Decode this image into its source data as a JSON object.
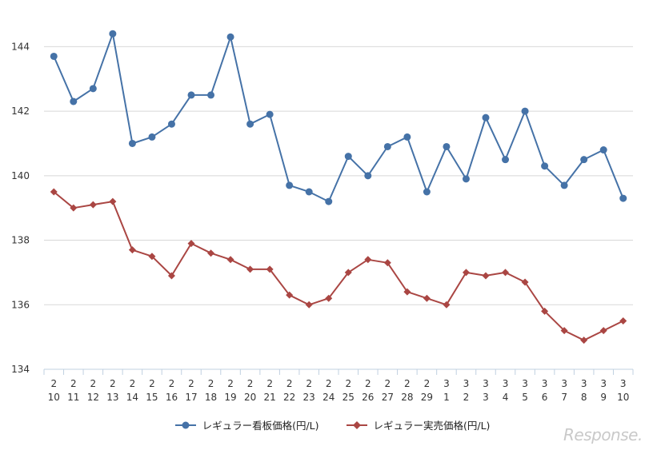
{
  "chart_data": {
    "type": "line",
    "title": "",
    "xlabel": "",
    "ylabel": "",
    "ylim": [
      134,
      145
    ],
    "yticks": [
      134,
      136,
      138,
      140,
      142,
      144
    ],
    "grid": true,
    "legend_position": "bottom",
    "categories": [
      {
        "month": "2",
        "day": "10"
      },
      {
        "month": "2",
        "day": "11"
      },
      {
        "month": "2",
        "day": "12"
      },
      {
        "month": "2",
        "day": "13"
      },
      {
        "month": "2",
        "day": "14"
      },
      {
        "month": "2",
        "day": "15"
      },
      {
        "month": "2",
        "day": "16"
      },
      {
        "month": "2",
        "day": "17"
      },
      {
        "month": "2",
        "day": "18"
      },
      {
        "month": "2",
        "day": "19"
      },
      {
        "month": "2",
        "day": "20"
      },
      {
        "month": "2",
        "day": "21"
      },
      {
        "month": "2",
        "day": "22"
      },
      {
        "month": "2",
        "day": "23"
      },
      {
        "month": "2",
        "day": "24"
      },
      {
        "month": "2",
        "day": "25"
      },
      {
        "month": "2",
        "day": "26"
      },
      {
        "month": "2",
        "day": "27"
      },
      {
        "month": "2",
        "day": "28"
      },
      {
        "month": "2",
        "day": "29"
      },
      {
        "month": "3",
        "day": "1"
      },
      {
        "month": "3",
        "day": "2"
      },
      {
        "month": "3",
        "day": "3"
      },
      {
        "month": "3",
        "day": "4"
      },
      {
        "month": "3",
        "day": "5"
      },
      {
        "month": "3",
        "day": "6"
      },
      {
        "month": "3",
        "day": "7"
      },
      {
        "month": "3",
        "day": "8"
      },
      {
        "month": "3",
        "day": "9"
      },
      {
        "month": "3",
        "day": "10"
      }
    ],
    "series": [
      {
        "name": "レギュラー看板価格(円/L)",
        "color": "#4572a7",
        "marker": "circle",
        "values": [
          143.7,
          142.3,
          142.7,
          144.4,
          141.0,
          141.2,
          141.6,
          142.5,
          142.5,
          144.3,
          141.6,
          141.9,
          139.7,
          139.5,
          139.2,
          140.6,
          140.0,
          140.9,
          141.2,
          139.5,
          140.9,
          139.9,
          141.8,
          140.5,
          142.0,
          140.3,
          139.7,
          140.5,
          140.8,
          139.3
        ]
      },
      {
        "name": "レギュラー実売価格(円/L)",
        "color": "#aa4643",
        "marker": "diamond",
        "values": [
          139.5,
          139.0,
          139.1,
          139.2,
          137.7,
          137.5,
          136.9,
          137.9,
          137.6,
          137.4,
          137.1,
          137.1,
          136.3,
          136.0,
          136.2,
          137.0,
          137.4,
          137.3,
          136.4,
          136.2,
          136.0,
          137.0,
          136.9,
          137.0,
          136.7,
          135.8,
          135.2,
          134.9,
          135.2,
          135.5
        ]
      }
    ]
  },
  "watermark": "Response."
}
